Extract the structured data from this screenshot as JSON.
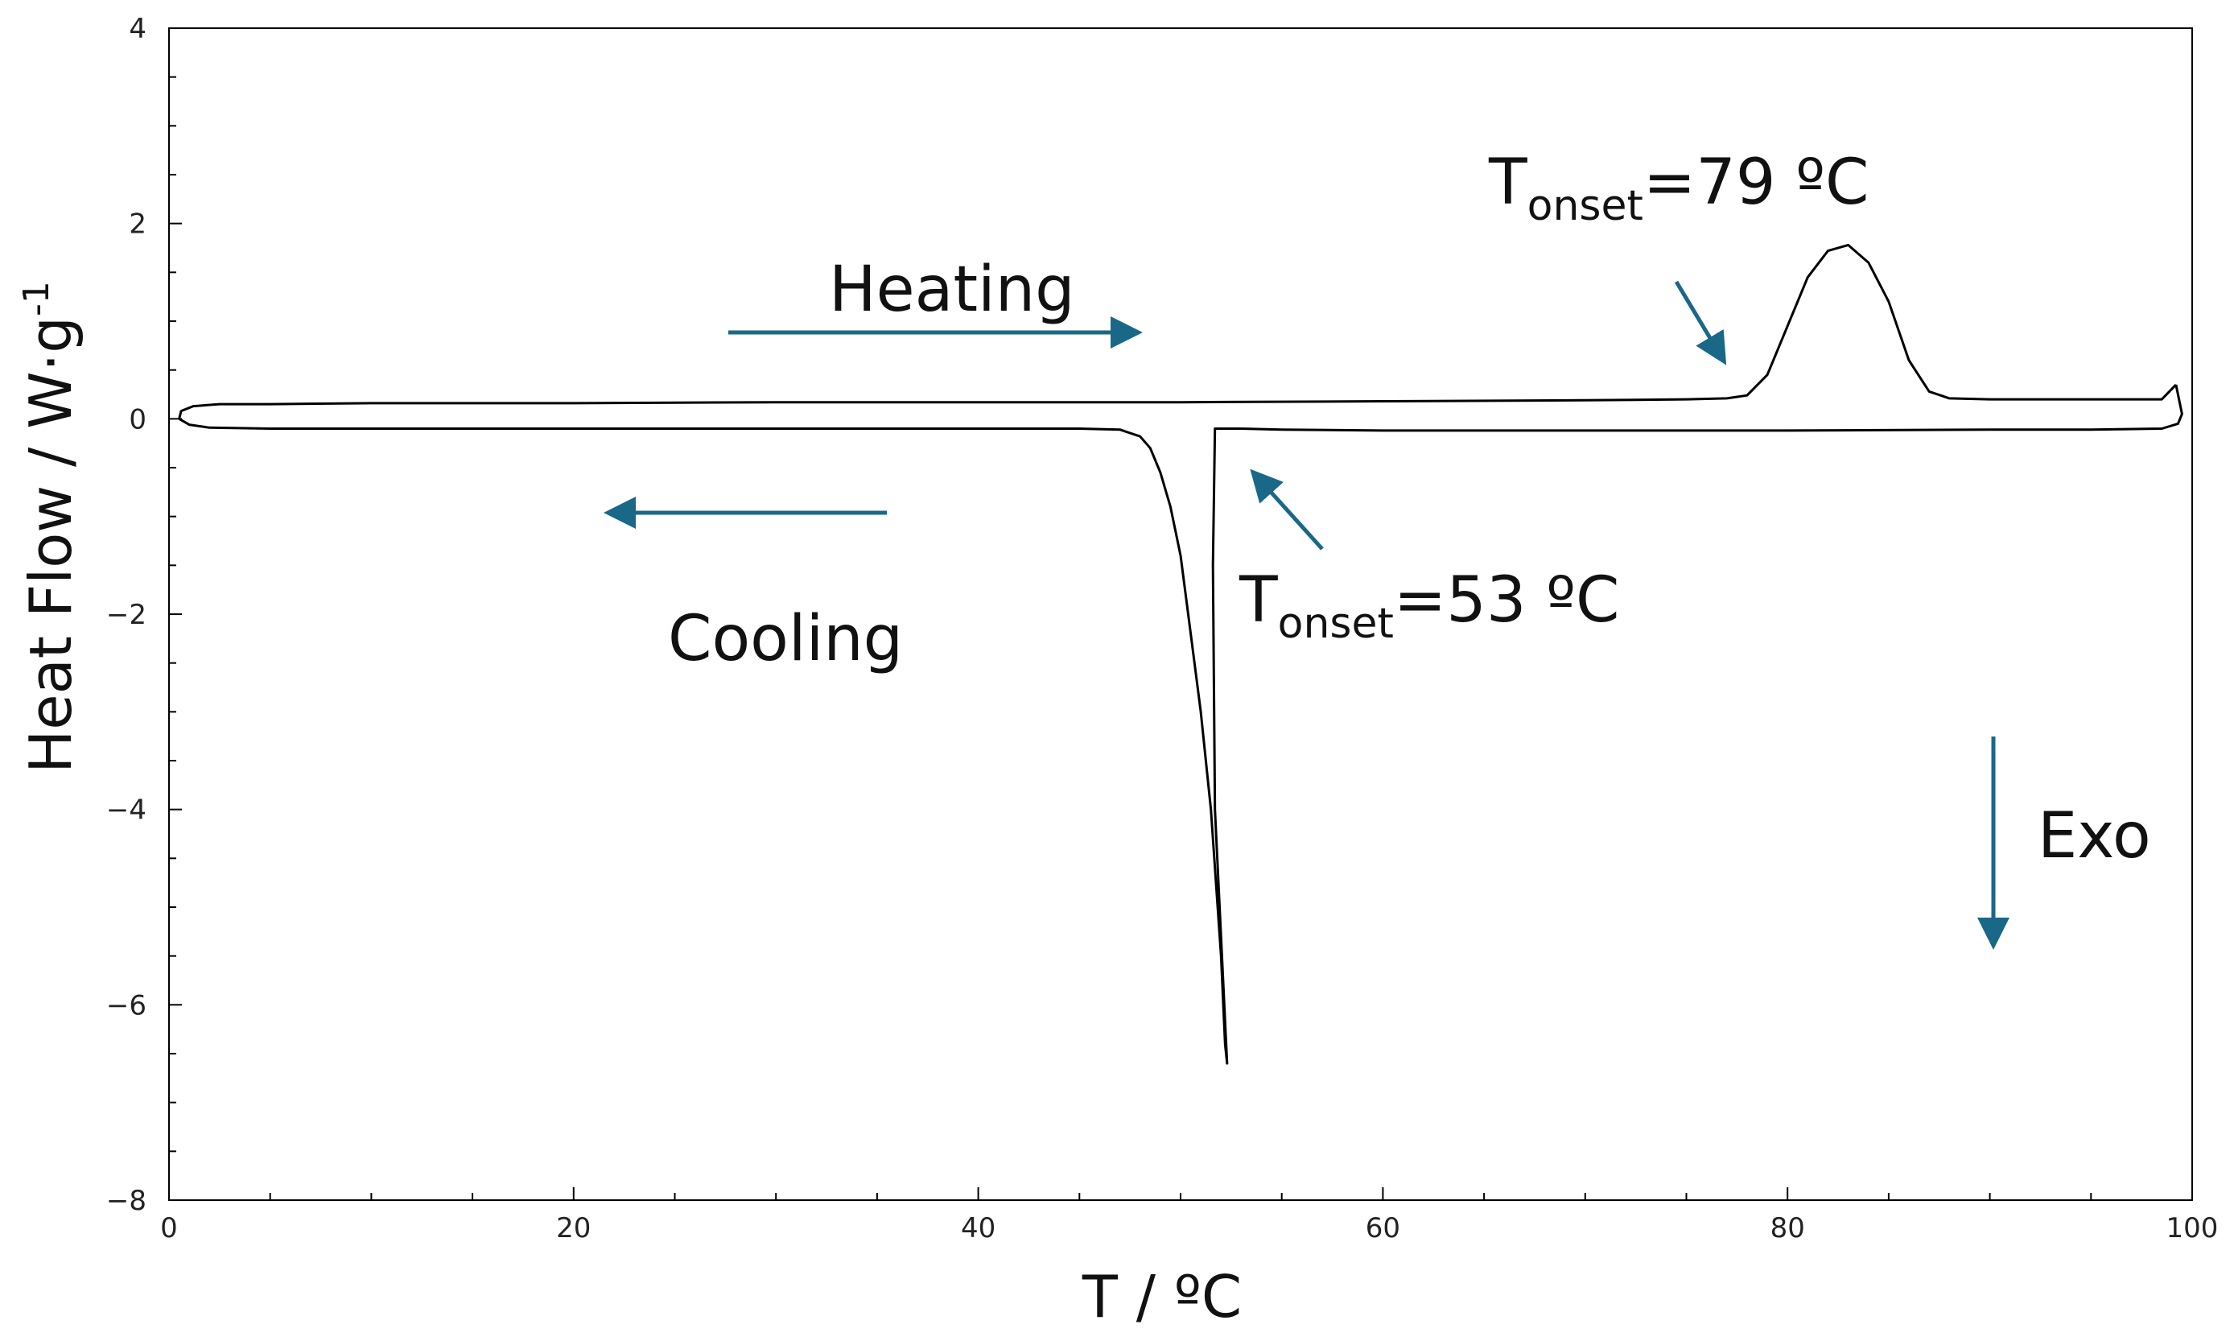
{
  "chart_data": {
    "type": "line",
    "title": "",
    "xlabel": "T  / ºC",
    "ylabel": "Heat Flow / W·g",
    "ylabel_superscript": "-1",
    "xlim": [
      0,
      100
    ],
    "ylim": [
      -8,
      4
    ],
    "x_ticks": [
      0,
      20,
      40,
      60,
      80,
      100
    ],
    "x_tick_labels": [
      "0",
      "20",
      "40",
      "60",
      "80",
      "100"
    ],
    "y_ticks": [
      4,
      2,
      0,
      -2,
      -4,
      -6,
      -8
    ],
    "y_tick_labels": [
      "4",
      "2",
      "0",
      "−2",
      "−4",
      "−6",
      "−8"
    ],
    "grid": false,
    "line_color": "#000000",
    "arrow_color": "#1a6888",
    "series": [
      {
        "x": [
          0.5,
          0.6,
          1.2,
          2.5,
          5,
          10,
          20,
          30,
          40,
          50,
          60,
          70,
          75,
          77,
          78,
          79,
          80,
          81,
          82,
          83,
          84,
          85,
          86,
          87,
          88,
          90,
          95,
          98.5,
          99.2
        ],
        "y": [
          0.0,
          0.08,
          0.13,
          0.15,
          0.15,
          0.16,
          0.16,
          0.17,
          0.17,
          0.17,
          0.18,
          0.19,
          0.2,
          0.21,
          0.24,
          0.45,
          0.95,
          1.45,
          1.72,
          1.78,
          1.6,
          1.2,
          0.6,
          0.28,
          0.21,
          0.2,
          0.2,
          0.2,
          0.35
        ]
      },
      {
        "x": [
          99.2,
          99.5,
          99.3,
          98.5,
          95,
          90,
          80,
          70,
          60,
          55,
          53,
          52,
          51.7,
          51.6,
          51.7,
          52.3,
          52.2,
          52.0,
          51.5,
          51.0,
          50.5,
          50.0,
          49.5,
          49.0,
          48.5,
          48.0,
          47.0,
          45.0,
          40,
          30,
          20,
          10,
          5,
          2,
          1,
          0.5
        ],
        "y": [
          0.35,
          0.05,
          -0.05,
          -0.1,
          -0.11,
          -0.11,
          -0.12,
          -0.12,
          -0.12,
          -0.11,
          -0.1,
          -0.1,
          -0.1,
          -1.5,
          -4.0,
          -6.6,
          -6.4,
          -5.5,
          -4.0,
          -3.0,
          -2.2,
          -1.4,
          -0.9,
          -0.55,
          -0.3,
          -0.18,
          -0.11,
          -0.1,
          -0.1,
          -0.1,
          -0.1,
          -0.1,
          -0.1,
          -0.09,
          -0.06,
          0.0
        ]
      }
    ],
    "annotations": {
      "heating": "Heating",
      "cooling": "Cooling",
      "exo": "Exo",
      "onset1": {
        "main": "T",
        "sub": "onset",
        "value": "=79 ºC"
      },
      "onset2": {
        "main": "T",
        "sub": "onset",
        "value": "=53 ºC"
      }
    }
  }
}
